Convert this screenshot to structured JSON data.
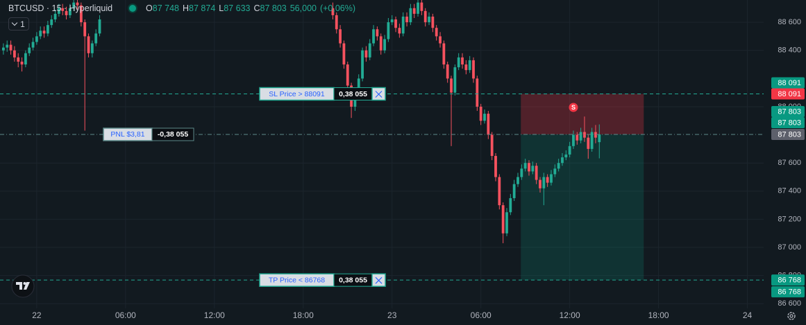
{
  "header": {
    "symbol": "BTCUSD · 15 · Hyperliquid",
    "ohlc": [
      {
        "key": "O",
        "value": "87 748"
      },
      {
        "key": "H",
        "value": "87 874"
      },
      {
        "key": "L",
        "value": "87 633"
      },
      {
        "key": "C",
        "value": "87 803"
      }
    ],
    "volume": "56,000",
    "change": "(+0,06%)"
  },
  "legend_toggle": "1",
  "chart_data": {
    "type": "candlestick",
    "x": [
      -2.25,
      -2,
      -1.75,
      -1.5,
      -1.25,
      -1,
      -0.75,
      -0.5,
      -0.25,
      0,
      0.25,
      0.5,
      0.75,
      1,
      1.25,
      1.5,
      1.75,
      2,
      2.25,
      2.5,
      2.75,
      3,
      3.25,
      3.5,
      3.75,
      4,
      4.25,
      20,
      20.25,
      20.5,
      20.75,
      21,
      21.25,
      21.5,
      21.75,
      22,
      22.25,
      22.5,
      22.75,
      23,
      23.25,
      23.5,
      23.75,
      24,
      24.25,
      24.5,
      24.75,
      25,
      25.25,
      25.5,
      25.75,
      26,
      26.25,
      26.5,
      26.75,
      27,
      27.25,
      27.5,
      27.75,
      28,
      28.25,
      28.5,
      28.75,
      29,
      29.25,
      29.5,
      29.75,
      30,
      30.25,
      30.5,
      30.75,
      31,
      31.25,
      31.5,
      31.75,
      32,
      32.25,
      32.5,
      32.75,
      33,
      33.25,
      33.5,
      33.75,
      34,
      34.25,
      34.5,
      34.75,
      35,
      35.25,
      35.5,
      35.75,
      36,
      36.25,
      36.5,
      36.75,
      37,
      37.25,
      37.5,
      37.75,
      38
    ],
    "open": [
      88400,
      88420,
      88440,
      88400,
      88350,
      88320,
      88300,
      88380,
      88420,
      88460,
      88500,
      88540,
      88520,
      88580,
      88620,
      88660,
      88700,
      88680,
      88650,
      88700,
      88740,
      88720,
      88600,
      88500,
      88380,
      88450,
      88520,
      88700,
      88650,
      88550,
      88450,
      88300,
      88150,
      88000,
      88100,
      88200,
      88400,
      88350,
      88450,
      88550,
      88500,
      88400,
      88480,
      88600,
      88620,
      88560,
      88520,
      88640,
      88600,
      88700,
      88660,
      88740,
      88680,
      88600,
      88640,
      88560,
      88500,
      88450,
      88300,
      88200,
      88100,
      88280,
      88350,
      88300,
      88260,
      88330,
      88200,
      88000,
      87900,
      87950,
      87800,
      87650,
      87500,
      87300,
      87100,
      87250,
      87350,
      87450,
      87500,
      87560,
      87600,
      87540,
      87580,
      87480,
      87420,
      87500,
      87460,
      87520,
      87560,
      87600,
      87640,
      87660,
      87720,
      87800,
      87760,
      87820,
      87780,
      87700,
      87820,
      87748
    ],
    "high": [
      88450,
      88470,
      88470,
      88430,
      88380,
      88350,
      88400,
      88450,
      88490,
      88530,
      88570,
      88570,
      88610,
      88650,
      88690,
      88730,
      88730,
      88710,
      88730,
      88770,
      88770,
      88740,
      88620,
      88520,
      88470,
      88550,
      88650,
      88740,
      88670,
      88580,
      88470,
      88320,
      88170,
      88130,
      88230,
      88420,
      88430,
      88480,
      88580,
      88570,
      88520,
      88510,
      88630,
      88650,
      88640,
      88590,
      88670,
      88670,
      88730,
      88730,
      88770,
      88770,
      88700,
      88670,
      88660,
      88580,
      88530,
      88470,
      88320,
      88220,
      88300,
      88380,
      88380,
      88330,
      88360,
      88350,
      88220,
      88020,
      87980,
      87970,
      87820,
      87670,
      87520,
      87320,
      87280,
      87380,
      87480,
      87530,
      87590,
      87630,
      87620,
      87610,
      87600,
      87500,
      87530,
      87520,
      87550,
      87590,
      87630,
      87670,
      87690,
      87750,
      87830,
      87820,
      87850,
      87930,
      87800,
      87850,
      87870,
      87874
    ],
    "low": [
      88370,
      88390,
      88370,
      88320,
      88280,
      88250,
      88280,
      88360,
      88400,
      88440,
      88480,
      88490,
      88500,
      88560,
      88600,
      88640,
      88650,
      88620,
      88630,
      88680,
      88690,
      88570,
      87830,
      88350,
      88350,
      88430,
      88500,
      88620,
      88520,
      88420,
      88270,
      88120,
      87920,
      87970,
      88080,
      88180,
      88320,
      88330,
      88430,
      88470,
      88370,
      88380,
      88460,
      88580,
      88530,
      88490,
      88500,
      88570,
      88580,
      88630,
      88640,
      88650,
      88570,
      88580,
      88530,
      88470,
      88420,
      88270,
      88170,
      87720,
      88080,
      88260,
      88270,
      88230,
      88240,
      88170,
      87970,
      87870,
      87880,
      87770,
      87620,
      87470,
      87270,
      87030,
      87080,
      87230,
      87330,
      87430,
      87480,
      87540,
      87510,
      87520,
      87450,
      87390,
      87300,
      87430,
      87440,
      87500,
      87540,
      87580,
      87620,
      87640,
      87700,
      87730,
      87740,
      87750,
      87630,
      87680,
      87740,
      87633
    ],
    "close": [
      88420,
      88440,
      88400,
      88350,
      88320,
      88300,
      88380,
      88420,
      88460,
      88500,
      88540,
      88520,
      88580,
      88620,
      88660,
      88700,
      88680,
      88650,
      88700,
      88740,
      88720,
      88600,
      88500,
      88380,
      88450,
      88520,
      88620,
      88650,
      88550,
      88450,
      88300,
      88150,
      88000,
      88100,
      88200,
      88400,
      88350,
      88450,
      88550,
      88500,
      88400,
      88480,
      88600,
      88620,
      88560,
      88520,
      88640,
      88600,
      88700,
      88660,
      88740,
      88680,
      88600,
      88640,
      88560,
      88500,
      88450,
      88300,
      88200,
      88100,
      88280,
      88350,
      88300,
      88260,
      88330,
      88200,
      88000,
      87900,
      87950,
      87800,
      87650,
      87500,
      87300,
      87100,
      87250,
      87350,
      87450,
      87500,
      87560,
      87600,
      87540,
      87580,
      87480,
      87420,
      87500,
      87460,
      87520,
      87560,
      87600,
      87640,
      87660,
      87720,
      87800,
      87760,
      87820,
      87780,
      87700,
      87820,
      87780,
      87803
    ],
    "up_color": "#22ab94",
    "down_color": "#f7525f",
    "xlim": [
      -2.48,
      49.1
    ],
    "ylim": [
      86567,
      88758
    ],
    "xticks": [
      {
        "value": 0,
        "label": "22"
      },
      {
        "value": 6,
        "label": "06:00"
      },
      {
        "value": 12,
        "label": "12:00"
      },
      {
        "value": 18,
        "label": "18:00"
      },
      {
        "value": 24,
        "label": "23"
      },
      {
        "value": 30,
        "label": "06:00"
      },
      {
        "value": 36,
        "label": "12:00"
      },
      {
        "value": 42,
        "label": "18:00"
      },
      {
        "value": 48,
        "label": "24"
      }
    ],
    "yticks": [
      {
        "value": 86600,
        "label": "86 600"
      },
      {
        "value": 86800,
        "label": "86 800"
      },
      {
        "value": 87000,
        "label": "87 000"
      },
      {
        "value": 87200,
        "label": "87 200"
      },
      {
        "value": 87400,
        "label": "87 400"
      },
      {
        "value": 87600,
        "label": "87 600"
      },
      {
        "value": 88000,
        "label": "88 000"
      },
      {
        "value": 88400,
        "label": "88 400"
      },
      {
        "value": 88600,
        "label": "88 600"
      }
    ],
    "grid": true,
    "position": {
      "start": 32.7,
      "end": 41,
      "entry": 87803,
      "stop": 88091,
      "target": 86768
    },
    "marker": {
      "label": "S",
      "x": 36.25,
      "value": 87995
    },
    "price_lines": [
      {
        "value": 88091,
        "label": "SL Price > 88091",
        "qty": "0,38 055",
        "color": "#22ab94"
      },
      {
        "value": 87803,
        "label": "PNL $3,81",
        "qty": "-0,38 055",
        "color": "#5d8a8a"
      },
      {
        "value": 86768,
        "label": "TP Price < 86768",
        "qty": "0,38 055",
        "color": "#22ab94"
      }
    ],
    "price_badges": [
      {
        "value": 88091,
        "label": "88 091",
        "color": "#089981"
      },
      {
        "value": 88091,
        "label": "88 091",
        "color": "#f23645"
      },
      {
        "value": 87803,
        "label": "87 803",
        "color": "#089981"
      },
      {
        "value": 87803,
        "label": "87 803",
        "color": "#089981"
      },
      {
        "value": 87803,
        "label": "87 803",
        "color": "#5d606b"
      },
      {
        "value": 86768,
        "label": "86 768",
        "color": "#089981"
      },
      {
        "value": 86768,
        "label": "86 768",
        "color": "#089981"
      }
    ]
  }
}
